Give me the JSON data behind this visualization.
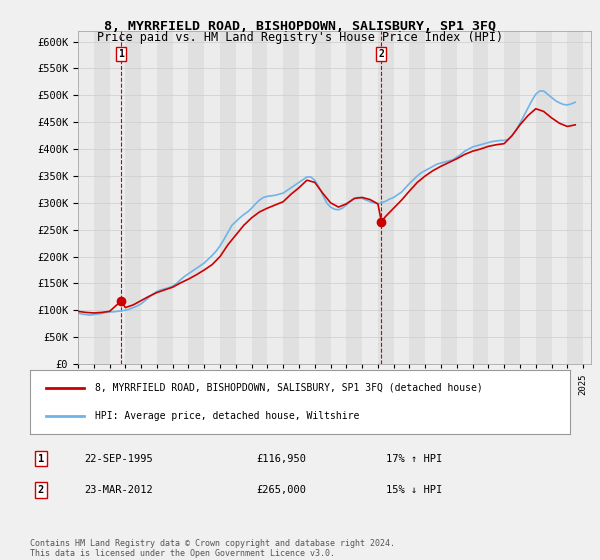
{
  "title": "8, MYRRFIELD ROAD, BISHOPDOWN, SALISBURY, SP1 3FQ",
  "subtitle": "Price paid vs. HM Land Registry's House Price Index (HPI)",
  "ylabel_prefix": "£",
  "ylim": [
    0,
    620000
  ],
  "yticks": [
    0,
    50000,
    100000,
    150000,
    200000,
    250000,
    300000,
    350000,
    400000,
    450000,
    500000,
    550000,
    600000
  ],
  "xlim_start": 1993.0,
  "xlim_end": 2025.5,
  "transaction1": {
    "date": "22-SEP-1995",
    "price": 116950,
    "pct": "17% ↑ HPI",
    "label": "1",
    "x": 1995.73
  },
  "transaction2": {
    "date": "23-MAR-2012",
    "price": 265000,
    "pct": "15% ↓ HPI",
    "label": "2",
    "x": 2012.22
  },
  "hpi_color": "#6eb4e8",
  "price_color": "#cc0000",
  "vline_color": "#cc0000",
  "legend_label1": "8, MYRRFIELD ROAD, BISHOPDOWN, SALISBURY, SP1 3FQ (detached house)",
  "legend_label2": "HPI: Average price, detached house, Wiltshire",
  "footer": "Contains HM Land Registry data © Crown copyright and database right 2024.\nThis data is licensed under the Open Government Licence v3.0.",
  "background_color": "#f0f0f0",
  "plot_bg_color": "#ffffff",
  "hpi_data_x": [
    1993.0,
    1993.25,
    1993.5,
    1993.75,
    1994.0,
    1994.25,
    1994.5,
    1994.75,
    1995.0,
    1995.25,
    1995.5,
    1995.75,
    1996.0,
    1996.25,
    1996.5,
    1996.75,
    1997.0,
    1997.25,
    1997.5,
    1997.75,
    1998.0,
    1998.25,
    1998.5,
    1998.75,
    1999.0,
    1999.25,
    1999.5,
    1999.75,
    2000.0,
    2000.25,
    2000.5,
    2000.75,
    2001.0,
    2001.25,
    2001.5,
    2001.75,
    2002.0,
    2002.25,
    2002.5,
    2002.75,
    2003.0,
    2003.25,
    2003.5,
    2003.75,
    2004.0,
    2004.25,
    2004.5,
    2004.75,
    2005.0,
    2005.25,
    2005.5,
    2005.75,
    2006.0,
    2006.25,
    2006.5,
    2006.75,
    2007.0,
    2007.25,
    2007.5,
    2007.75,
    2008.0,
    2008.25,
    2008.5,
    2008.75,
    2009.0,
    2009.25,
    2009.5,
    2009.75,
    2010.0,
    2010.25,
    2010.5,
    2010.75,
    2011.0,
    2011.25,
    2011.5,
    2011.75,
    2012.0,
    2012.25,
    2012.5,
    2012.75,
    2013.0,
    2013.25,
    2013.5,
    2013.75,
    2014.0,
    2014.25,
    2014.5,
    2014.75,
    2015.0,
    2015.25,
    2015.5,
    2015.75,
    2016.0,
    2016.25,
    2016.5,
    2016.75,
    2017.0,
    2017.25,
    2017.5,
    2017.75,
    2018.0,
    2018.25,
    2018.5,
    2018.75,
    2019.0,
    2019.25,
    2019.5,
    2019.75,
    2020.0,
    2020.25,
    2020.5,
    2020.75,
    2021.0,
    2021.25,
    2021.5,
    2021.75,
    2022.0,
    2022.25,
    2022.5,
    2022.75,
    2023.0,
    2023.25,
    2023.5,
    2023.75,
    2024.0,
    2024.25,
    2024.5
  ],
  "hpi_data_y": [
    95000,
    93000,
    92000,
    91000,
    92000,
    93000,
    94000,
    96000,
    97000,
    97000,
    98000,
    99000,
    100000,
    102000,
    105000,
    108000,
    112000,
    118000,
    124000,
    130000,
    135000,
    138000,
    140000,
    142000,
    145000,
    150000,
    157000,
    163000,
    168000,
    173000,
    178000,
    183000,
    188000,
    195000,
    202000,
    210000,
    220000,
    232000,
    245000,
    258000,
    265000,
    272000,
    278000,
    283000,
    290000,
    298000,
    305000,
    310000,
    312000,
    313000,
    314000,
    316000,
    318000,
    323000,
    328000,
    333000,
    338000,
    343000,
    348000,
    348000,
    342000,
    330000,
    315000,
    300000,
    292000,
    288000,
    287000,
    290000,
    296000,
    302000,
    308000,
    310000,
    308000,
    305000,
    302000,
    300000,
    298000,
    300000,
    303000,
    307000,
    310000,
    315000,
    320000,
    328000,
    336000,
    343000,
    350000,
    356000,
    360000,
    364000,
    368000,
    372000,
    374000,
    376000,
    378000,
    380000,
    385000,
    390000,
    396000,
    400000,
    404000,
    406000,
    408000,
    410000,
    412000,
    414000,
    415000,
    416000,
    416000,
    418000,
    425000,
    435000,
    448000,
    462000,
    476000,
    490000,
    502000,
    508000,
    508000,
    502000,
    496000,
    490000,
    486000,
    483000,
    482000,
    484000,
    487000
  ],
  "price_data_x": [
    1993.0,
    1993.5,
    1994.0,
    1994.5,
    1995.0,
    1995.73,
    1996.0,
    1996.5,
    1997.0,
    1997.5,
    1998.0,
    1998.5,
    1999.0,
    1999.5,
    2000.0,
    2000.5,
    2001.0,
    2001.5,
    2002.0,
    2002.5,
    2003.0,
    2003.5,
    2004.0,
    2004.5,
    2005.0,
    2005.5,
    2006.0,
    2006.5,
    2007.0,
    2007.5,
    2008.0,
    2008.5,
    2009.0,
    2009.5,
    2010.0,
    2010.5,
    2011.0,
    2011.5,
    2012.0,
    2012.22,
    2012.5,
    2013.0,
    2013.5,
    2014.0,
    2014.5,
    2015.0,
    2015.5,
    2016.0,
    2016.5,
    2017.0,
    2017.5,
    2018.0,
    2018.5,
    2019.0,
    2019.5,
    2020.0,
    2020.5,
    2021.0,
    2021.5,
    2022.0,
    2022.5,
    2023.0,
    2023.5,
    2024.0,
    2024.5
  ],
  "price_data_y": [
    98000,
    96000,
    95000,
    96000,
    98000,
    116950,
    105000,
    110000,
    118000,
    126000,
    133000,
    138000,
    143000,
    151000,
    158000,
    166000,
    175000,
    185000,
    200000,
    222000,
    240000,
    258000,
    272000,
    283000,
    290000,
    296000,
    302000,
    316000,
    328000,
    342000,
    338000,
    318000,
    300000,
    292000,
    298000,
    308000,
    310000,
    306000,
    298000,
    265000,
    275000,
    290000,
    305000,
    322000,
    338000,
    350000,
    360000,
    368000,
    375000,
    382000,
    390000,
    396000,
    400000,
    405000,
    408000,
    410000,
    425000,
    445000,
    462000,
    475000,
    470000,
    458000,
    448000,
    442000,
    445000
  ]
}
